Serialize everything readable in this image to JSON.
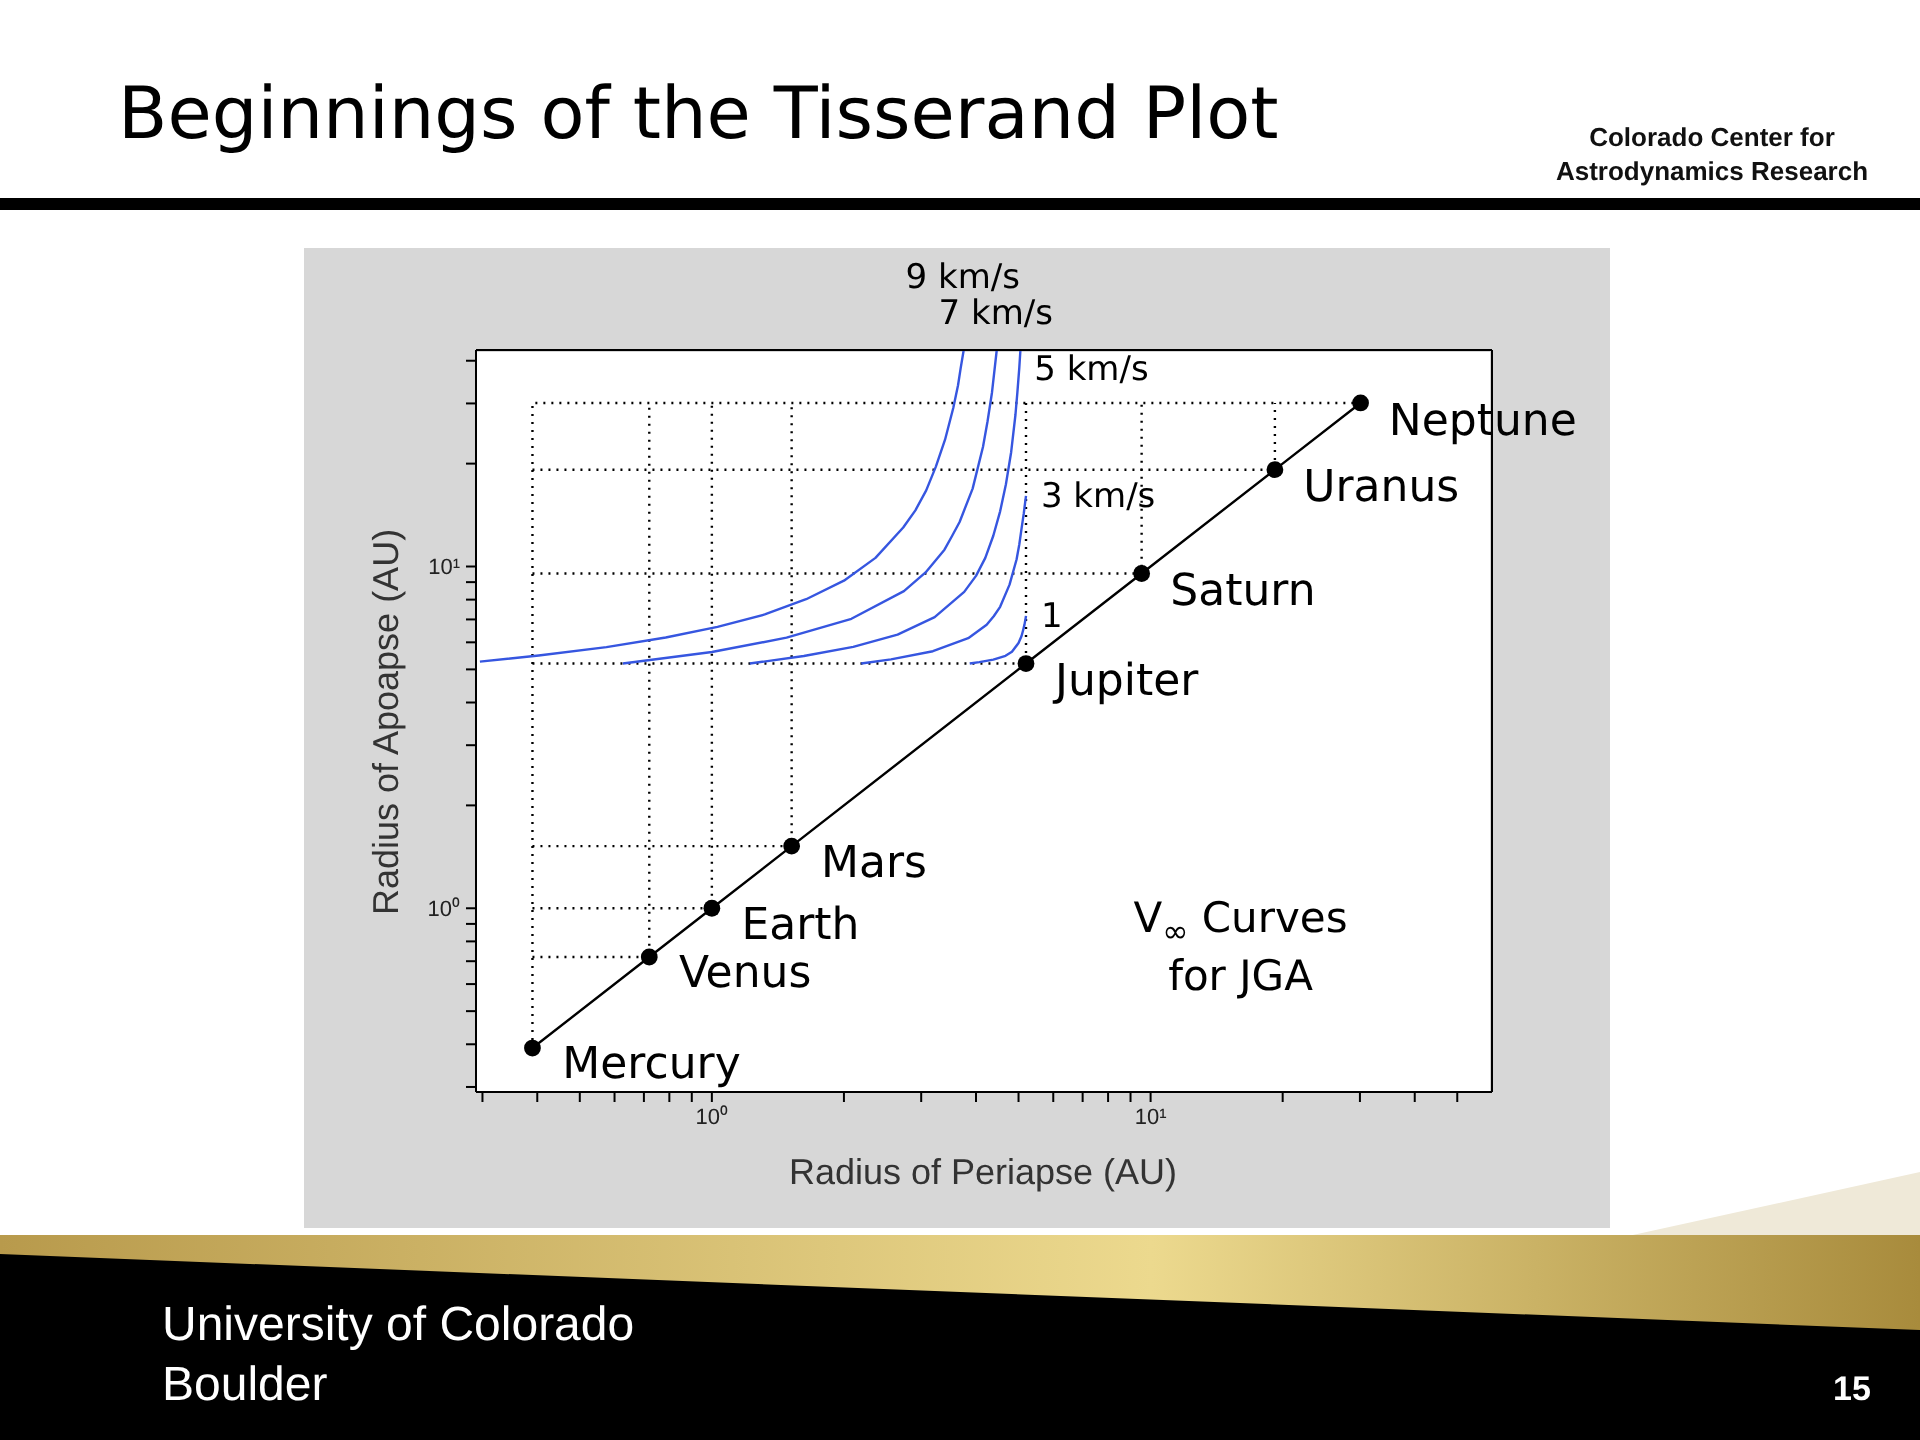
{
  "chart_data": {
    "type": "line",
    "title": "Beginnings of the Tisserand Plot",
    "xlabel": "Radius of Periapse (AU)",
    "ylabel": "Radius of Apoapse (AU)",
    "log": "xy",
    "xlim": [
      0.29,
      60
    ],
    "ylim": [
      0.29,
      43
    ],
    "xticks": [
      {
        "value": 0.3,
        "label": null
      },
      {
        "value": 0.4,
        "label": null
      },
      {
        "value": 0.5,
        "label": null
      },
      {
        "value": 0.6,
        "label": null
      },
      {
        "value": 0.7,
        "label": null
      },
      {
        "value": 0.8,
        "label": null
      },
      {
        "value": 0.9,
        "label": null
      },
      {
        "value": 1,
        "label": "10⁰"
      },
      {
        "value": 2,
        "label": null
      },
      {
        "value": 3,
        "label": null
      },
      {
        "value": 4,
        "label": null
      },
      {
        "value": 5,
        "label": null
      },
      {
        "value": 6,
        "label": null
      },
      {
        "value": 7,
        "label": null
      },
      {
        "value": 8,
        "label": null
      },
      {
        "value": 9,
        "label": null
      },
      {
        "value": 10,
        "label": "10¹"
      },
      {
        "value": 20,
        "label": null
      },
      {
        "value": 30,
        "label": null
      },
      {
        "value": 40,
        "label": null
      },
      {
        "value": 50,
        "label": null
      }
    ],
    "yticks": [
      {
        "value": 0.3,
        "label": null
      },
      {
        "value": 0.4,
        "label": null
      },
      {
        "value": 0.5,
        "label": null
      },
      {
        "value": 0.6,
        "label": null
      },
      {
        "value": 0.7,
        "label": null
      },
      {
        "value": 0.8,
        "label": null
      },
      {
        "value": 0.9,
        "label": null
      },
      {
        "value": 1,
        "label": "10⁰"
      },
      {
        "value": 2,
        "label": null
      },
      {
        "value": 3,
        "label": null
      },
      {
        "value": 4,
        "label": null
      },
      {
        "value": 5,
        "label": null
      },
      {
        "value": 6,
        "label": null
      },
      {
        "value": 7,
        "label": null
      },
      {
        "value": 8,
        "label": null
      },
      {
        "value": 9,
        "label": null
      },
      {
        "value": 10,
        "label": "10¹"
      },
      {
        "value": 20,
        "label": null
      },
      {
        "value": 30,
        "label": null
      },
      {
        "value": 40,
        "label": null
      }
    ],
    "series": [
      {
        "color": "#000000",
        "line_style": "solid",
        "marker": "circle",
        "x": [
          0.39,
          0.72,
          1.0,
          1.52,
          5.2,
          9.54,
          19.2,
          30.1
        ],
        "values": [
          0.39,
          0.72,
          1.0,
          1.52,
          5.2,
          9.54,
          19.2,
          30.1
        ]
      },
      {
        "color": "#000000",
        "line_style": "dotted",
        "marker": "none",
        "x": [
          0.39,
          0.39,
          0.39,
          19.2,
          30.1
        ],
        "values": [
          0.39,
          0.72,
          30.1,
          30.1,
          30.1
        ]
      },
      {
        "color": "#000000",
        "line_style": "dotted",
        "marker": "none",
        "x": [
          0.39,
          0.72,
          0.72
        ],
        "values": [
          0.72,
          0.72,
          30.1
        ]
      },
      {
        "color": "#000000",
        "line_style": "dotted",
        "marker": "none",
        "x": [
          0.39,
          1.0,
          1.0
        ],
        "values": [
          1.0,
          1.0,
          30.1
        ]
      },
      {
        "color": "#000000",
        "line_style": "dotted",
        "marker": "none",
        "x": [
          0.39,
          1.52,
          1.52
        ],
        "values": [
          1.52,
          1.52,
          30.1
        ]
      },
      {
        "color": "#000000",
        "line_style": "dotted",
        "marker": "none",
        "x": [
          0.39,
          5.2,
          5.2
        ],
        "values": [
          5.2,
          5.2,
          30.1
        ]
      },
      {
        "color": "#000000",
        "line_style": "dotted",
        "marker": "none",
        "x": [
          0.39,
          9.54,
          9.54
        ],
        "values": [
          9.54,
          9.54,
          30.1
        ]
      },
      {
        "color": "#000000",
        "line_style": "dotted",
        "marker": "none",
        "x": [
          0.39,
          19.2,
          19.2
        ],
        "values": [
          19.2,
          19.2,
          30.1
        ]
      },
      {
        "color": "#3656e0",
        "line_style": "solid",
        "marker": "none",
        "x": [
          0.296,
          0.403,
          0.575,
          0.785,
          1.03,
          1.32,
          1.64,
          2.0,
          2.36,
          2.73,
          2.91,
          3.08,
          3.24,
          3.4,
          3.55,
          3.64,
          3.69,
          3.75
        ],
        "values": [
          5.27,
          5.49,
          5.81,
          6.2,
          6.66,
          7.24,
          8.02,
          9.09,
          10.6,
          13.0,
          14.6,
          16.7,
          19.6,
          23.5,
          29.1,
          33.9,
          38.0,
          43
        ]
      },
      {
        "color": "#3656e0",
        "line_style": "solid",
        "marker": "none",
        "x": [
          0.627,
          1.0,
          1.48,
          2.08,
          2.74,
          3.07,
          3.39,
          3.53,
          3.67,
          3.93,
          4.15,
          4.25,
          4.35,
          4.46
        ],
        "values": [
          5.2,
          5.62,
          6.19,
          7.03,
          8.47,
          9.61,
          11.2,
          12.3,
          13.5,
          16.9,
          22.4,
          26.6,
          32.3,
          43
        ]
      },
      {
        "color": "#3656e0",
        "line_style": "solid",
        "marker": "none",
        "x": [
          1.22,
          1.62,
          2.1,
          2.65,
          3.22,
          3.76,
          4.0,
          4.2,
          4.38,
          4.54,
          4.68,
          4.81,
          4.92,
          4.97,
          5.02,
          5.05
        ],
        "values": [
          5.2,
          5.47,
          5.82,
          6.32,
          7.11,
          8.43,
          9.39,
          10.6,
          12.3,
          14.5,
          17.4,
          21.6,
          27.8,
          32.3,
          38.1,
          43
        ]
      },
      {
        "color": "#3656e0",
        "line_style": "solid",
        "marker": "none",
        "x": [
          2.19,
          2.56,
          3.19,
          3.84,
          4.23,
          4.39,
          4.54,
          4.77,
          4.95,
          5.02,
          5.08,
          5.14,
          5.17,
          5.2
        ],
        "values": [
          5.2,
          5.35,
          5.65,
          6.17,
          6.75,
          7.15,
          7.62,
          8.85,
          10.5,
          11.6,
          12.9,
          14.3,
          15.2,
          16.1
        ]
      },
      {
        "color": "#3656e0",
        "line_style": "solid",
        "marker": "none",
        "x": [
          3.87,
          4.07,
          4.38,
          4.67,
          4.83,
          5.0,
          5.08,
          5.12,
          5.16,
          5.19,
          5.2
        ],
        "values": [
          5.2,
          5.25,
          5.34,
          5.48,
          5.63,
          5.97,
          6.26,
          6.5,
          6.77,
          7.06,
          7.17
        ]
      }
    ],
    "annotations": [
      {
        "text": "Mercury",
        "x": 0.39,
        "y": 0.39
      },
      {
        "text": "Venus",
        "x": 0.72,
        "y": 0.72
      },
      {
        "text": "Earth",
        "x": 1.0,
        "y": 1.0
      },
      {
        "text": "Mars",
        "x": 1.52,
        "y": 1.52
      },
      {
        "text": "Jupiter",
        "x": 5.2,
        "y": 5.2
      },
      {
        "text": "Saturn",
        "x": 9.54,
        "y": 9.54
      },
      {
        "text": "Uranus",
        "x": 19.2,
        "y": 19.2
      },
      {
        "text": "Neptune",
        "x": 30.1,
        "y": 30.1
      },
      {
        "text": "9 km/s",
        "x": 3.75,
        "y": 43
      },
      {
        "text": "7 km/s",
        "x": 4.46,
        "y": 43
      },
      {
        "text": "5 km/s",
        "x": 5.02,
        "y": 38.1
      },
      {
        "text": "3 km/s",
        "x": 5.2,
        "y": 16.1
      },
      {
        "text": "1",
        "x": 5.2,
        "y": 7.17
      },
      "V$_{∞}$ Curves for JGA",
      "Colorado Center for Astrodynamics Research",
      "University of Colorado Boulder",
      "15"
    ]
  }
}
